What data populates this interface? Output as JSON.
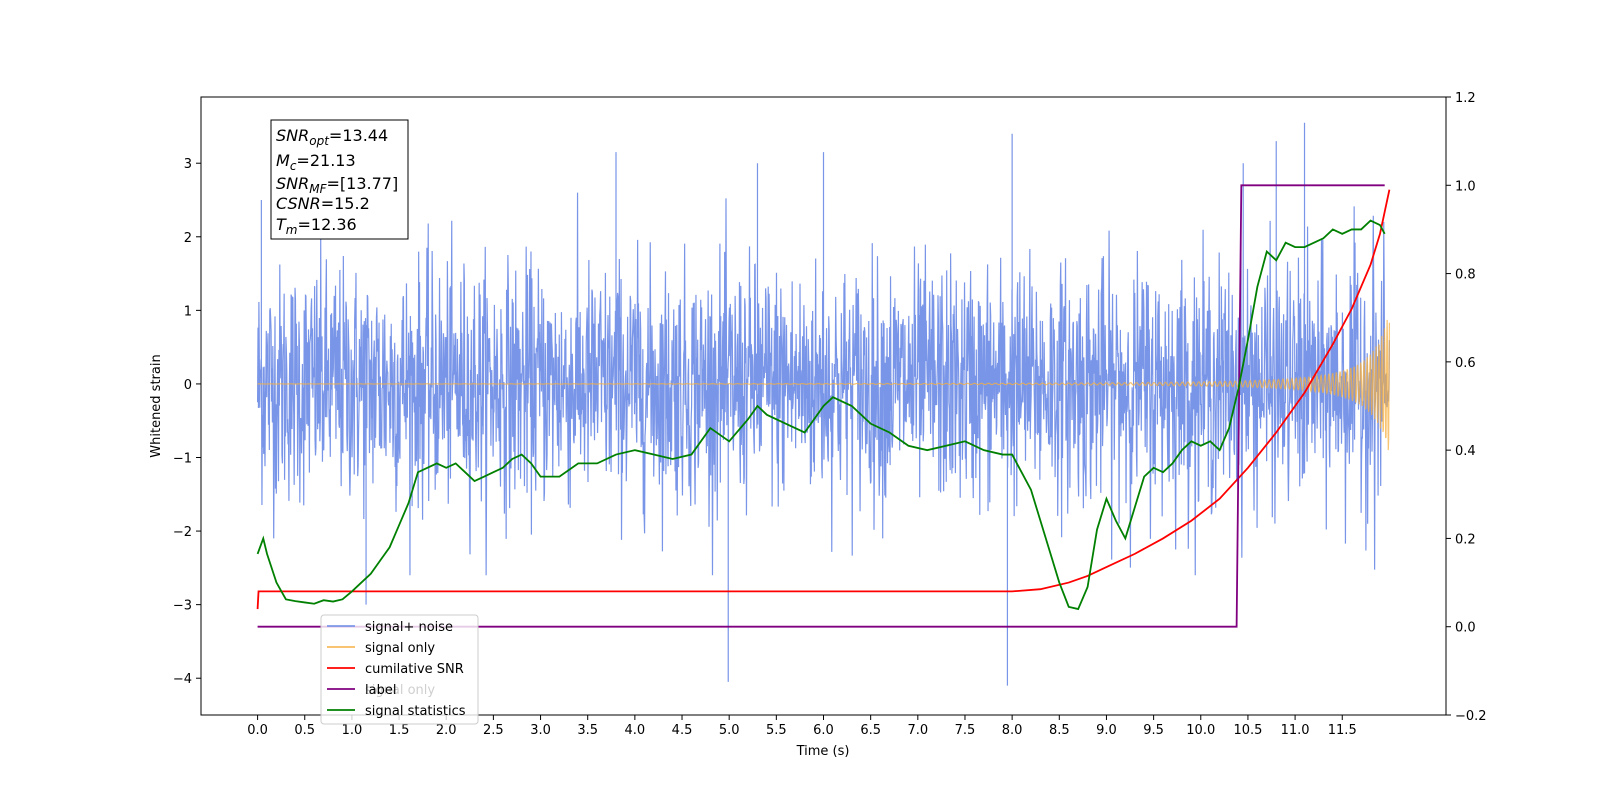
{
  "chart_data": {
    "type": "line",
    "xlabel": "Time (s)",
    "ylabel": "Whitened strain",
    "xlim": [
      -0.6,
      12.6
    ],
    "ylim": [
      -4.5,
      3.9
    ],
    "y2lim": [
      -0.2,
      1.2
    ],
    "x_ticks": [
      "0.0",
      "0.5",
      "1.0",
      "1.5",
      "2.0",
      "2.5",
      "3.0",
      "3.5",
      "4.0",
      "4.5",
      "5.0",
      "5.5",
      "6.0",
      "6.5",
      "7.0",
      "7.5",
      "8.0",
      "8.5",
      "9.0",
      "9.5",
      "10.0",
      "10.5",
      "11.0",
      "11.5"
    ],
    "y_ticks": [
      "−4",
      "−3",
      "−2",
      "−1",
      "0",
      "1",
      "2",
      "3"
    ],
    "y2_ticks": [
      "−0.2",
      "0.0",
      "0.2",
      "0.4",
      "0.6",
      "0.8",
      "1.0",
      "1.2"
    ],
    "annotation": {
      "lines": [
        {
          "main": "SNR",
          "sub": "opt",
          "rest": "=13.44"
        },
        {
          "main": "M",
          "sub": "c",
          "rest": "=21.13"
        },
        {
          "main": "SNR",
          "sub": "MF",
          "rest": "=[13.77]"
        },
        {
          "main": "CSNR",
          "sub": "",
          "rest": "=15.2"
        },
        {
          "main": "T",
          "sub": "m",
          "rest": "=12.36"
        }
      ]
    },
    "legend": {
      "placement": "lower-left",
      "entries": [
        "signal+ noise",
        "signal only",
        "cumilative SNR",
        "label",
        "signal statistics"
      ],
      "hidden_text": "signal only"
    },
    "series": [
      {
        "name": "signal+ noise",
        "color": "#6a8ae6",
        "axis": "left",
        "x_range": [
          0.0,
          12.0
        ],
        "noise_sigma": 0.8,
        "spikes": [
          {
            "x": 0.04,
            "y": 2.5
          },
          {
            "x": 1.15,
            "y": -3.0
          },
          {
            "x": 3.8,
            "y": 3.15
          },
          {
            "x": 4.99,
            "y": -4.05
          },
          {
            "x": 5.3,
            "y": 3.0
          },
          {
            "x": 6.0,
            "y": 3.15
          },
          {
            "x": 7.95,
            "y": -4.1
          },
          {
            "x": 8.0,
            "y": 3.4
          },
          {
            "x": 10.8,
            "y": 3.3
          },
          {
            "x": 11.1,
            "y": 3.55
          },
          {
            "x": 10.45,
            "y": 3.0
          }
        ]
      },
      {
        "name": "signal only",
        "color": "#f5b041",
        "axis": "left",
        "x_range": [
          0.0,
          12.0
        ],
        "peak_amplitude": 1.0,
        "tc": 12.3
      },
      {
        "name": "cumilative SNR",
        "color": "#ff0000",
        "axis": "right",
        "x": [
          0.0,
          0.01,
          8.0,
          8.3,
          8.6,
          8.8,
          9.0,
          9.3,
          9.6,
          9.9,
          10.2,
          10.5,
          10.8,
          11.1,
          11.4,
          11.6,
          11.8,
          11.9,
          11.95,
          12.0
        ],
        "y": [
          0.04,
          0.08,
          0.08,
          0.085,
          0.1,
          0.115,
          0.135,
          0.165,
          0.2,
          0.24,
          0.29,
          0.36,
          0.44,
          0.53,
          0.64,
          0.72,
          0.82,
          0.89,
          0.94,
          0.99
        ]
      },
      {
        "name": "label",
        "color": "#800080",
        "axis": "right",
        "x": [
          0.0,
          10.38,
          10.43,
          11.95
        ],
        "y": [
          0.0,
          0.0,
          1.0,
          1.0
        ]
      },
      {
        "name": "signal statistics",
        "color": "#008000",
        "axis": "right",
        "x": [
          0.0,
          0.06,
          0.1,
          0.2,
          0.3,
          0.4,
          0.5,
          0.6,
          0.7,
          0.8,
          0.9,
          1.0,
          1.1,
          1.2,
          1.3,
          1.4,
          1.5,
          1.6,
          1.7,
          1.8,
          1.9,
          2.0,
          2.1,
          2.2,
          2.3,
          2.4,
          2.5,
          2.6,
          2.7,
          2.8,
          2.9,
          3.0,
          3.2,
          3.4,
          3.6,
          3.8,
          4.0,
          4.2,
          4.4,
          4.6,
          4.8,
          5.0,
          5.2,
          5.3,
          5.4,
          5.6,
          5.8,
          6.0,
          6.1,
          6.3,
          6.5,
          6.7,
          6.9,
          7.1,
          7.3,
          7.5,
          7.7,
          7.9,
          8.0,
          8.1,
          8.2,
          8.3,
          8.4,
          8.5,
          8.6,
          8.7,
          8.8,
          8.9,
          9.0,
          9.1,
          9.2,
          9.3,
          9.4,
          9.5,
          9.6,
          9.7,
          9.8,
          9.9,
          10.0,
          10.1,
          10.2,
          10.3,
          10.4,
          10.5,
          10.6,
          10.7,
          10.8,
          10.9,
          11.0,
          11.1,
          11.2,
          11.3,
          11.4,
          11.5,
          11.6,
          11.7,
          11.8,
          11.9,
          11.95
        ],
        "y": [
          0.165,
          0.2,
          0.165,
          0.1,
          0.062,
          0.058,
          0.055,
          0.052,
          0.06,
          0.057,
          0.062,
          0.08,
          0.1,
          0.12,
          0.15,
          0.18,
          0.23,
          0.28,
          0.35,
          0.36,
          0.37,
          0.36,
          0.37,
          0.35,
          0.33,
          0.34,
          0.35,
          0.36,
          0.38,
          0.39,
          0.37,
          0.34,
          0.34,
          0.37,
          0.37,
          0.39,
          0.4,
          0.39,
          0.38,
          0.39,
          0.45,
          0.42,
          0.47,
          0.5,
          0.48,
          0.46,
          0.44,
          0.5,
          0.52,
          0.5,
          0.46,
          0.44,
          0.41,
          0.4,
          0.41,
          0.42,
          0.4,
          0.39,
          0.39,
          0.35,
          0.31,
          0.24,
          0.17,
          0.1,
          0.045,
          0.04,
          0.09,
          0.22,
          0.29,
          0.24,
          0.2,
          0.27,
          0.34,
          0.36,
          0.35,
          0.37,
          0.4,
          0.42,
          0.41,
          0.42,
          0.4,
          0.45,
          0.54,
          0.65,
          0.77,
          0.85,
          0.83,
          0.87,
          0.86,
          0.86,
          0.87,
          0.88,
          0.9,
          0.89,
          0.9,
          0.9,
          0.92,
          0.91,
          0.89
        ]
      }
    ]
  }
}
